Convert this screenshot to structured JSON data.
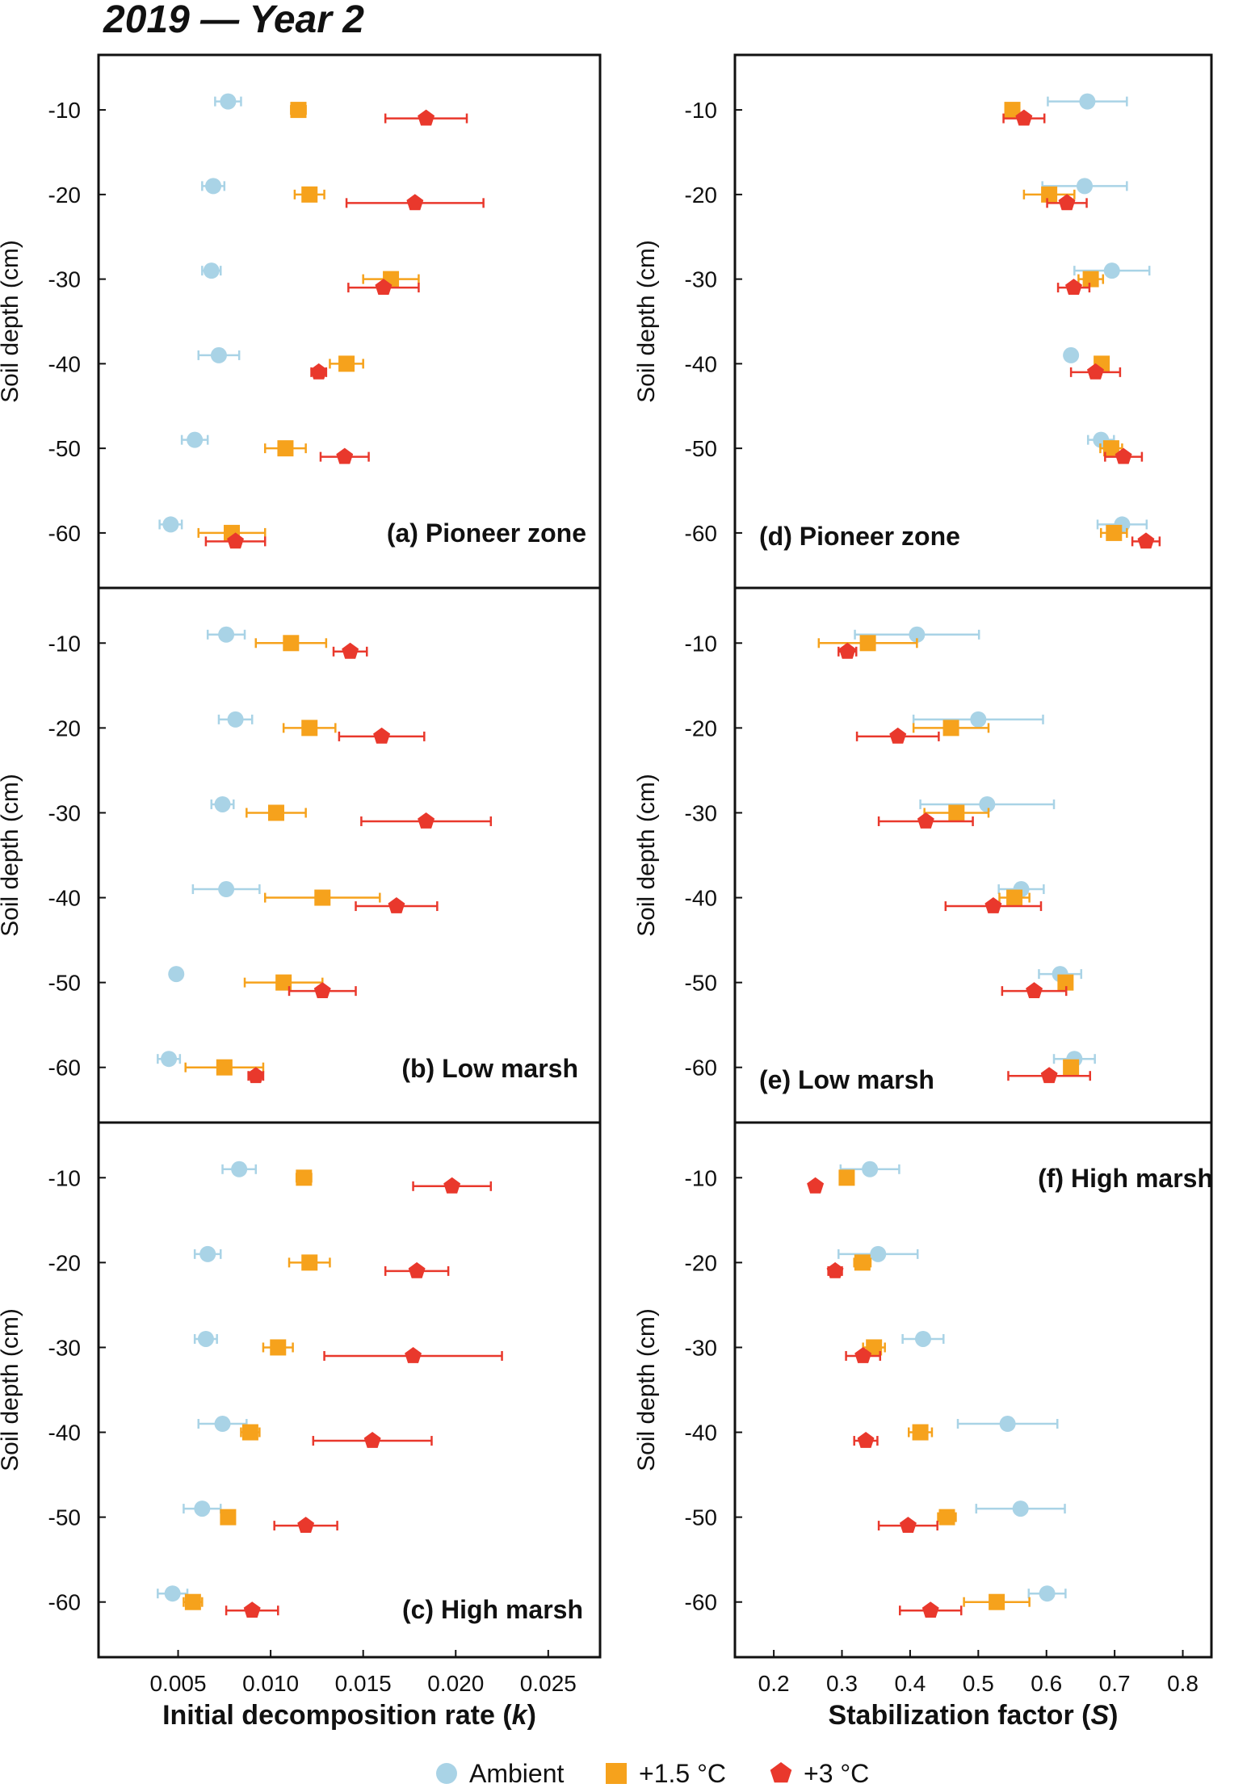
{
  "figure_title": "2019 — Year 2",
  "colors": {
    "ambient": "#a9d3e6",
    "warm15": "#f6a21c",
    "warm3": "#e9382c",
    "axis": "#111111"
  },
  "legend": [
    {
      "key": "ambient",
      "label": "Ambient",
      "marker": "circle"
    },
    {
      "key": "warm15",
      "label": "+1.5 °C",
      "marker": "square"
    },
    {
      "key": "warm3",
      "label": "+3 °C",
      "marker": "pentagon"
    }
  ],
  "chart_data": [
    {
      "type": "scatter",
      "column": 0,
      "row": 0,
      "panel_label": "(a) Pioneer zone",
      "xlabel": "Initial decomposition rate (k)",
      "ylabel": "Soil depth (cm)",
      "xlim": [
        0.0007,
        0.0278
      ],
      "ylim": [
        -66.5,
        -3.5
      ],
      "yticks": [
        -10,
        -20,
        -30,
        -40,
        -50,
        -60
      ],
      "xticks": [
        0.005,
        0.01,
        0.015,
        0.02,
        0.025
      ],
      "xtick_labels": [
        "0.005",
        "0.010",
        "0.015",
        "0.020",
        "0.025"
      ],
      "series": [
        {
          "name": "Ambient",
          "points": [
            {
              "y": -9,
              "x": 0.0077,
              "err": 0.0007
            },
            {
              "y": -19,
              "x": 0.0069,
              "err": 0.0006
            },
            {
              "y": -29,
              "x": 0.0068,
              "err": 0.0005
            },
            {
              "y": -39,
              "x": 0.0072,
              "err": 0.0011
            },
            {
              "y": -49,
              "x": 0.0059,
              "err": 0.0007
            },
            {
              "y": -59,
              "x": 0.0046,
              "err": 0.0006
            }
          ]
        },
        {
          "name": "+1.5 °C",
          "points": [
            {
              "y": -10,
              "x": 0.0115,
              "err": 0.0004
            },
            {
              "y": -20,
              "x": 0.0121,
              "err": 0.0008
            },
            {
              "y": -30,
              "x": 0.0165,
              "err": 0.0015
            },
            {
              "y": -40,
              "x": 0.0141,
              "err": 0.0009
            },
            {
              "y": -50,
              "x": 0.0108,
              "err": 0.0011
            },
            {
              "y": -60,
              "x": 0.0079,
              "err": 0.0018
            }
          ]
        },
        {
          "name": "+3 °C",
          "points": [
            {
              "y": -11,
              "x": 0.0184,
              "err": 0.0022
            },
            {
              "y": -21,
              "x": 0.0178,
              "err": 0.0037
            },
            {
              "y": -31,
              "x": 0.0161,
              "err": 0.0019
            },
            {
              "y": -41,
              "x": 0.0126,
              "err": 0.0004
            },
            {
              "y": -51,
              "x": 0.014,
              "err": 0.0013
            },
            {
              "y": -61,
              "x": 0.0081,
              "err": 0.0016
            }
          ]
        }
      ]
    },
    {
      "type": "scatter",
      "column": 0,
      "row": 1,
      "panel_label": "(b) Low marsh",
      "xlabel": "Initial decomposition rate (k)",
      "ylabel": "Soil depth (cm)",
      "xlim": [
        0.0007,
        0.0278
      ],
      "ylim": [
        -66.5,
        -3.5
      ],
      "yticks": [
        -10,
        -20,
        -30,
        -40,
        -50,
        -60
      ],
      "xticks": [
        0.005,
        0.01,
        0.015,
        0.02,
        0.025
      ],
      "xtick_labels": [
        "0.005",
        "0.010",
        "0.015",
        "0.020",
        "0.025"
      ],
      "series": [
        {
          "name": "Ambient",
          "points": [
            {
              "y": -9,
              "x": 0.0076,
              "err": 0.001
            },
            {
              "y": -19,
              "x": 0.0081,
              "err": 0.0009
            },
            {
              "y": -29,
              "x": 0.0074,
              "err": 0.0006
            },
            {
              "y": -39,
              "x": 0.0076,
              "err": 0.0018
            },
            {
              "y": -49,
              "x": 0.0049,
              "err": 0.0003
            },
            {
              "y": -59,
              "x": 0.0045,
              "err": 0.0006
            }
          ]
        },
        {
          "name": "+1.5 °C",
          "points": [
            {
              "y": -10,
              "x": 0.0111,
              "err": 0.0019
            },
            {
              "y": -20,
              "x": 0.0121,
              "err": 0.0014
            },
            {
              "y": -30,
              "x": 0.0103,
              "err": 0.0016
            },
            {
              "y": -40,
              "x": 0.0128,
              "err": 0.0031
            },
            {
              "y": -50,
              "x": 0.0107,
              "err": 0.0021
            },
            {
              "y": -60,
              "x": 0.0075,
              "err": 0.0021
            }
          ]
        },
        {
          "name": "+3 °C",
          "points": [
            {
              "y": -11,
              "x": 0.0143,
              "err": 0.0009
            },
            {
              "y": -21,
              "x": 0.016,
              "err": 0.0023
            },
            {
              "y": -31,
              "x": 0.0184,
              "err": 0.0035
            },
            {
              "y": -41,
              "x": 0.0168,
              "err": 0.0022
            },
            {
              "y": -51,
              "x": 0.0128,
              "err": 0.0018
            },
            {
              "y": -61,
              "x": 0.0092,
              "err": 0.0004
            }
          ]
        }
      ]
    },
    {
      "type": "scatter",
      "column": 0,
      "row": 2,
      "panel_label": "(c) High marsh",
      "xlabel": "Initial decomposition rate (k)",
      "ylabel": "Soil depth (cm)",
      "xlim": [
        0.0007,
        0.0278
      ],
      "ylim": [
        -66.5,
        -3.5
      ],
      "yticks": [
        -10,
        -20,
        -30,
        -40,
        -50,
        -60
      ],
      "xticks": [
        0.005,
        0.01,
        0.015,
        0.02,
        0.025
      ],
      "xtick_labels": [
        "0.005",
        "0.010",
        "0.015",
        "0.020",
        "0.025"
      ],
      "series": [
        {
          "name": "Ambient",
          "points": [
            {
              "y": -9,
              "x": 0.0083,
              "err": 0.0009
            },
            {
              "y": -19,
              "x": 0.0066,
              "err": 0.0007
            },
            {
              "y": -29,
              "x": 0.0065,
              "err": 0.0006
            },
            {
              "y": -39,
              "x": 0.0074,
              "err": 0.0013
            },
            {
              "y": -49,
              "x": 0.0063,
              "err": 0.001
            },
            {
              "y": -59,
              "x": 0.0047,
              "err": 0.0008
            }
          ]
        },
        {
          "name": "+1.5 °C",
          "points": [
            {
              "y": -10,
              "x": 0.0118,
              "err": 0.0004
            },
            {
              "y": -20,
              "x": 0.0121,
              "err": 0.0011
            },
            {
              "y": -30,
              "x": 0.0104,
              "err": 0.0008
            },
            {
              "y": -40,
              "x": 0.0089,
              "err": 0.0005
            },
            {
              "y": -50,
              "x": 0.0077,
              "err": 0.0002
            },
            {
              "y": -60,
              "x": 0.0058,
              "err": 0.0005
            }
          ]
        },
        {
          "name": "+3 °C",
          "points": [
            {
              "y": -11,
              "x": 0.0198,
              "err": 0.0021
            },
            {
              "y": -21,
              "x": 0.0179,
              "err": 0.0017
            },
            {
              "y": -31,
              "x": 0.0177,
              "err": 0.0048
            },
            {
              "y": -41,
              "x": 0.0155,
              "err": 0.0032
            },
            {
              "y": -51,
              "x": 0.0119,
              "err": 0.0017
            },
            {
              "y": -61,
              "x": 0.009,
              "err": 0.0014
            }
          ]
        }
      ]
    },
    {
      "type": "scatter",
      "column": 1,
      "row": 0,
      "panel_label": "(d) Pioneer zone",
      "xlabel": "Stabilization factor (S)",
      "ylabel": "Soil depth (cm)",
      "xlim": [
        0.143,
        0.842
      ],
      "ylim": [
        -66.5,
        -3.5
      ],
      "yticks": [
        -10,
        -20,
        -30,
        -40,
        -50,
        -60
      ],
      "xticks": [
        0.2,
        0.3,
        0.4,
        0.5,
        0.6,
        0.7,
        0.8
      ],
      "xtick_labels": [
        "0.2",
        "0.3",
        "0.4",
        "0.5",
        "0.6",
        "0.7",
        "0.8"
      ],
      "series": [
        {
          "name": "Ambient",
          "points": [
            {
              "y": -9,
              "x": 0.66,
              "err": 0.058
            },
            {
              "y": -19,
              "x": 0.656,
              "err": 0.062
            },
            {
              "y": -29,
              "x": 0.696,
              "err": 0.055
            },
            {
              "y": -39,
              "x": 0.636,
              "err": 0.005
            },
            {
              "y": -49,
              "x": 0.68,
              "err": 0.019
            },
            {
              "y": -59,
              "x": 0.711,
              "err": 0.036
            }
          ]
        },
        {
          "name": "+1.5 °C",
          "points": [
            {
              "y": -10,
              "x": 0.55,
              "err": 0.008
            },
            {
              "y": -20,
              "x": 0.604,
              "err": 0.037
            },
            {
              "y": -30,
              "x": 0.665,
              "err": 0.018
            },
            {
              "y": -40,
              "x": 0.681,
              "err": 0.006
            },
            {
              "y": -50,
              "x": 0.695,
              "err": 0.016
            },
            {
              "y": -60,
              "x": 0.699,
              "err": 0.019
            }
          ]
        },
        {
          "name": "+3 °C",
          "points": [
            {
              "y": -11,
              "x": 0.567,
              "err": 0.03
            },
            {
              "y": -21,
              "x": 0.63,
              "err": 0.029
            },
            {
              "y": -31,
              "x": 0.64,
              "err": 0.023
            },
            {
              "y": -41,
              "x": 0.672,
              "err": 0.036
            },
            {
              "y": -51,
              "x": 0.713,
              "err": 0.027
            },
            {
              "y": -61,
              "x": 0.746,
              "err": 0.02
            }
          ]
        }
      ]
    },
    {
      "type": "scatter",
      "column": 1,
      "row": 1,
      "panel_label": "(e) Low marsh",
      "xlabel": "Stabilization factor (S)",
      "ylabel": "Soil depth (cm)",
      "xlim": [
        0.143,
        0.842
      ],
      "ylim": [
        -66.5,
        -3.5
      ],
      "yticks": [
        -10,
        -20,
        -30,
        -40,
        -50,
        -60
      ],
      "xticks": [
        0.2,
        0.3,
        0.4,
        0.5,
        0.6,
        0.7,
        0.8
      ],
      "xtick_labels": [
        "0.2",
        "0.3",
        "0.4",
        "0.5",
        "0.6",
        "0.7",
        "0.8"
      ],
      "series": [
        {
          "name": "Ambient",
          "points": [
            {
              "y": -9,
              "x": 0.41,
              "err": 0.091
            },
            {
              "y": -19,
              "x": 0.5,
              "err": 0.095
            },
            {
              "y": -29,
              "x": 0.513,
              "err": 0.098
            },
            {
              "y": -39,
              "x": 0.563,
              "err": 0.033
            },
            {
              "y": -49,
              "x": 0.62,
              "err": 0.031
            },
            {
              "y": -59,
              "x": 0.641,
              "err": 0.03
            }
          ]
        },
        {
          "name": "+1.5 °C",
          "points": [
            {
              "y": -10,
              "x": 0.338,
              "err": 0.072
            },
            {
              "y": -20,
              "x": 0.46,
              "err": 0.055
            },
            {
              "y": -30,
              "x": 0.468,
              "err": 0.047
            },
            {
              "y": -40,
              "x": 0.553,
              "err": 0.022
            },
            {
              "y": -50,
              "x": 0.628,
              "err": 0.005
            },
            {
              "y": -60,
              "x": 0.636,
              "err": 0.008
            }
          ]
        },
        {
          "name": "+3 °C",
          "points": [
            {
              "y": -11,
              "x": 0.308,
              "err": 0.013
            },
            {
              "y": -21,
              "x": 0.382,
              "err": 0.06
            },
            {
              "y": -31,
              "x": 0.423,
              "err": 0.069
            },
            {
              "y": -41,
              "x": 0.522,
              "err": 0.07
            },
            {
              "y": -51,
              "x": 0.582,
              "err": 0.047
            },
            {
              "y": -61,
              "x": 0.604,
              "err": 0.06
            }
          ]
        }
      ]
    },
    {
      "type": "scatter",
      "column": 1,
      "row": 2,
      "panel_label": "(f) High marsh",
      "xlabel": "Stabilization factor (S)",
      "ylabel": "Soil depth (cm)",
      "xlim": [
        0.143,
        0.842
      ],
      "ylim": [
        -66.5,
        -3.5
      ],
      "yticks": [
        -10,
        -20,
        -30,
        -40,
        -50,
        -60
      ],
      "xticks": [
        0.2,
        0.3,
        0.4,
        0.5,
        0.6,
        0.7,
        0.8
      ],
      "xtick_labels": [
        "0.2",
        "0.3",
        "0.4",
        "0.5",
        "0.6",
        "0.7",
        "0.8"
      ],
      "series": [
        {
          "name": "Ambient",
          "points": [
            {
              "y": -9,
              "x": 0.341,
              "err": 0.043
            },
            {
              "y": -19,
              "x": 0.353,
              "err": 0.058
            },
            {
              "y": -29,
              "x": 0.419,
              "err": 0.03
            },
            {
              "y": -39,
              "x": 0.543,
              "err": 0.073
            },
            {
              "y": -49,
              "x": 0.562,
              "err": 0.065
            },
            {
              "y": -59,
              "x": 0.601,
              "err": 0.027
            }
          ]
        },
        {
          "name": "+1.5 °C",
          "points": [
            {
              "y": -10,
              "x": 0.307,
              "err": 0.005
            },
            {
              "y": -20,
              "x": 0.33,
              "err": 0.012
            },
            {
              "y": -30,
              "x": 0.347,
              "err": 0.016
            },
            {
              "y": -40,
              "x": 0.415,
              "err": 0.017
            },
            {
              "y": -50,
              "x": 0.454,
              "err": 0.013
            },
            {
              "y": -60,
              "x": 0.527,
              "err": 0.048
            }
          ]
        },
        {
          "name": "+3 °C",
          "points": [
            {
              "y": -11,
              "x": 0.261,
              "err": 0.003
            },
            {
              "y": -21,
              "x": 0.29,
              "err": 0.01
            },
            {
              "y": -31,
              "x": 0.331,
              "err": 0.025
            },
            {
              "y": -41,
              "x": 0.335,
              "err": 0.017
            },
            {
              "y": -51,
              "x": 0.397,
              "err": 0.043
            },
            {
              "y": -61,
              "x": 0.43,
              "err": 0.045
            }
          ]
        }
      ]
    }
  ]
}
